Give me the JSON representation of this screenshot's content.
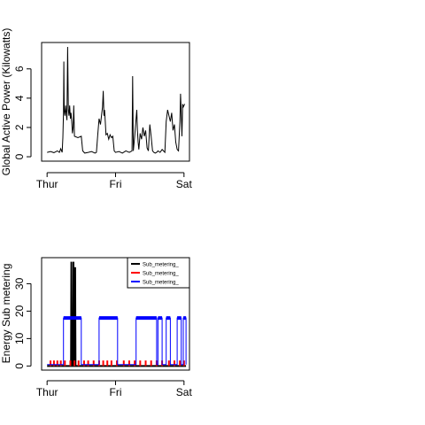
{
  "chart_data": [
    {
      "type": "line",
      "title": "",
      "xlabel": "",
      "ylabel": "Global Active Power (Kilowatts)",
      "x_ticks": [
        {
          "label": "Thur",
          "x": 0
        },
        {
          "label": "Fri",
          "x": 1
        },
        {
          "label": "Sat",
          "x": 2
        }
      ],
      "xlim": [
        -0.08,
        2.08
      ],
      "y_ticks": [
        0,
        2,
        4,
        6
      ],
      "ylim": [
        -0.3,
        7.8
      ],
      "series": [
        {
          "color": "#000000",
          "points": [
            [
              0.0,
              0.3
            ],
            [
              0.05,
              0.35
            ],
            [
              0.1,
              0.28
            ],
            [
              0.15,
              0.4
            ],
            [
              0.18,
              0.3
            ],
            [
              0.2,
              0.55
            ],
            [
              0.22,
              0.3
            ],
            [
              0.23,
              1.3
            ],
            [
              0.24,
              3.0
            ],
            [
              0.245,
              6.5
            ],
            [
              0.25,
              3.2
            ],
            [
              0.26,
              2.8
            ],
            [
              0.27,
              3.5
            ],
            [
              0.28,
              3.0
            ],
            [
              0.29,
              2.5
            ],
            [
              0.3,
              7.5
            ],
            [
              0.31,
              3.2
            ],
            [
              0.32,
              2.8
            ],
            [
              0.33,
              3.5
            ],
            [
              0.34,
              2.6
            ],
            [
              0.35,
              3.0
            ],
            [
              0.36,
              2.4
            ],
            [
              0.37,
              1.6
            ],
            [
              0.38,
              2.0
            ],
            [
              0.39,
              3.5
            ],
            [
              0.4,
              1.4
            ],
            [
              0.45,
              1.3
            ],
            [
              0.5,
              1.4
            ],
            [
              0.52,
              0.4
            ],
            [
              0.55,
              0.25
            ],
            [
              0.6,
              0.3
            ],
            [
              0.65,
              0.35
            ],
            [
              0.7,
              0.25
            ],
            [
              0.72,
              0.3
            ],
            [
              0.74,
              1.5
            ],
            [
              0.76,
              2.6
            ],
            [
              0.78,
              2.2
            ],
            [
              0.8,
              3.0
            ],
            [
              0.81,
              3.4
            ],
            [
              0.82,
              4.5
            ],
            [
              0.83,
              2.8
            ],
            [
              0.84,
              3.2
            ],
            [
              0.85,
              2.4
            ],
            [
              0.86,
              1.5
            ],
            [
              0.88,
              1.6
            ],
            [
              0.9,
              1.2
            ],
            [
              0.92,
              1.5
            ],
            [
              0.94,
              1.3
            ],
            [
              0.96,
              1.4
            ],
            [
              0.98,
              0.4
            ],
            [
              1.0,
              0.3
            ],
            [
              1.05,
              0.35
            ],
            [
              1.1,
              0.25
            ],
            [
              1.15,
              0.4
            ],
            [
              1.2,
              0.3
            ],
            [
              1.24,
              0.4
            ],
            [
              1.25,
              5.5
            ],
            [
              1.26,
              0.4
            ],
            [
              1.28,
              1.4
            ],
            [
              1.3,
              2.6
            ],
            [
              1.31,
              3.2
            ],
            [
              1.32,
              1.8
            ],
            [
              1.33,
              1.0
            ],
            [
              1.34,
              0.5
            ],
            [
              1.36,
              1.6
            ],
            [
              1.38,
              1.2
            ],
            [
              1.4,
              2.0
            ],
            [
              1.42,
              1.4
            ],
            [
              1.44,
              1.8
            ],
            [
              1.46,
              0.6
            ],
            [
              1.48,
              0.4
            ],
            [
              1.5,
              2.2
            ],
            [
              1.52,
              1.4
            ],
            [
              1.54,
              0.4
            ],
            [
              1.56,
              0.3
            ],
            [
              1.58,
              0.25
            ],
            [
              1.6,
              0.3
            ],
            [
              1.62,
              0.4
            ],
            [
              1.65,
              0.3
            ],
            [
              1.68,
              0.5
            ],
            [
              1.7,
              0.4
            ],
            [
              1.72,
              0.3
            ],
            [
              1.74,
              2.4
            ],
            [
              1.76,
              3.2
            ],
            [
              1.78,
              2.8
            ],
            [
              1.8,
              2.4
            ],
            [
              1.82,
              3.0
            ],
            [
              1.84,
              1.8
            ],
            [
              1.86,
              2.2
            ],
            [
              1.88,
              1.0
            ],
            [
              1.9,
              0.5
            ],
            [
              1.92,
              0.4
            ],
            [
              1.94,
              2.4
            ],
            [
              1.95,
              4.3
            ],
            [
              1.96,
              3.0
            ],
            [
              1.97,
              1.4
            ],
            [
              1.98,
              3.6
            ],
            [
              1.99,
              3.4
            ],
            [
              2.0,
              3.5
            ],
            [
              2.01,
              3.6
            ]
          ]
        }
      ]
    },
    {
      "type": "line",
      "title": "",
      "xlabel": "",
      "ylabel": "Energy Sub metering",
      "x_ticks": [
        {
          "label": "Thur",
          "x": 0
        },
        {
          "label": "Fri",
          "x": 1
        },
        {
          "label": "Sat",
          "x": 2
        }
      ],
      "xlim": [
        -0.08,
        2.08
      ],
      "y_ticks": [
        0,
        10,
        20,
        30
      ],
      "ylim": [
        -1.5,
        39.5
      ],
      "legend": {
        "placement": "top-right",
        "entries": [
          {
            "label": "Sub_metering_",
            "color": "#000000"
          },
          {
            "label": "Sub_metering_",
            "color": "#ff0000"
          },
          {
            "label": "Sub_metering_",
            "color": "#0000ff"
          }
        ]
      },
      "series": [
        {
          "color": "#000000",
          "points": [
            [
              0.0,
              0
            ],
            [
              0.35,
              0
            ],
            [
              0.355,
              38
            ],
            [
              0.36,
              0
            ],
            [
              0.38,
              0
            ],
            [
              0.385,
              38
            ],
            [
              0.39,
              0
            ],
            [
              0.4,
              0
            ],
            [
              0.41,
              36
            ],
            [
              0.415,
              0
            ],
            [
              2.03,
              0
            ]
          ]
        },
        {
          "color": "#ff0000",
          "spikes": [
            0.05,
            0.1,
            0.15,
            0.2,
            0.26,
            0.34,
            0.4,
            0.46,
            0.54,
            0.6,
            0.68,
            0.76,
            0.82,
            0.88,
            0.94,
            1.02,
            1.12,
            1.2,
            1.28,
            1.36,
            1.44,
            1.52,
            1.6,
            1.68,
            1.78,
            1.86,
            1.94,
            2.0
          ],
          "spike_value": 2
        },
        {
          "color": "#0000ff",
          "blocks": [
            [
              0.24,
              0.5,
              17.5
            ],
            [
              0.76,
              1.03,
              17.5
            ],
            [
              1.3,
              1.6,
              17.5
            ],
            [
              1.62,
              1.68,
              17.5
            ],
            [
              1.74,
              1.8,
              17.5
            ],
            [
              1.9,
              1.96,
              17.5
            ],
            [
              1.99,
              2.03,
              17.5
            ]
          ],
          "base_value": 0.5
        }
      ]
    }
  ]
}
